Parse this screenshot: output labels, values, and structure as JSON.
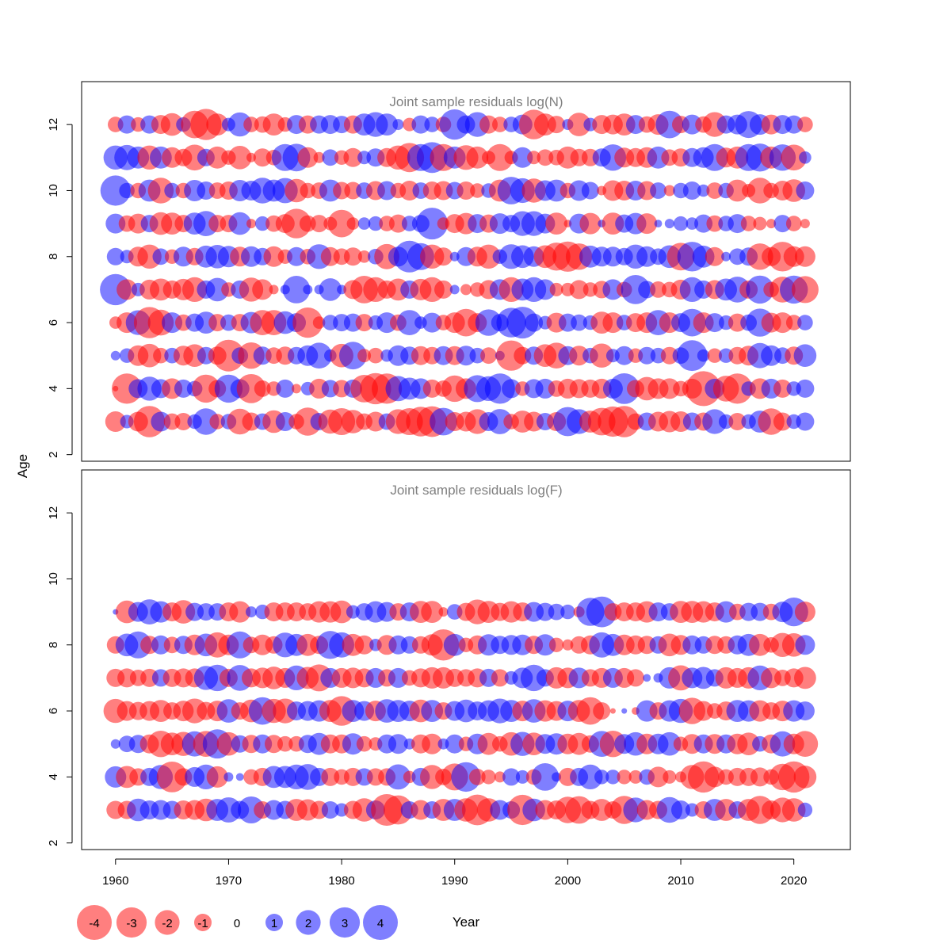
{
  "chart_data": [
    {
      "type": "scatter",
      "title": "Joint sample residuals log(N)",
      "xlabel": "Year",
      "ylabel": "Age",
      "xlim": [
        1957,
        2025
      ],
      "ylim": [
        1.8,
        13.3
      ],
      "x_ticks": [
        1960,
        1970,
        1980,
        1990,
        2000,
        2010,
        2020
      ],
      "y_ticks": [
        2,
        4,
        6,
        8,
        10,
        12
      ],
      "years": [
        1960,
        2021
      ],
      "ages": [
        3,
        4,
        5,
        6,
        7,
        8,
        9,
        10,
        11,
        12
      ],
      "residuals": {
        "3": [
          -1.4,
          0.6,
          -1.3,
          -3.2,
          1.3,
          -0.9,
          -1.0,
          0.7,
          2.3,
          -0.8,
          0.8,
          -2.2,
          -1.1,
          0.9,
          -1.7,
          1.2,
          -0.8,
          -2.6,
          1.0,
          -1.9,
          -2.4,
          -1.8,
          -0.9,
          -1.3,
          0.9,
          -2.0,
          -2.4,
          -2.9,
          -3.1,
          2.5,
          -1.2,
          -1.3,
          -2.0,
          1.2,
          2.1,
          -0.8,
          -1.6,
          -1.3,
          1.0,
          -1.2,
          2.8,
          2.0,
          -1.6,
          -2.5,
          -3.0,
          -3.2,
          -0.9,
          1.1,
          -1.3,
          -1.5,
          -1.4,
          1.1,
          -1.1,
          2.0,
          0.7,
          -1.0,
          0.7,
          1.6,
          -2.3,
          -1.1,
          0.7,
          1.1
        ],
        "4": [
          -0.1,
          -3.0,
          1.2,
          1.9,
          1.2,
          -1.4,
          1.1,
          0.8,
          -2.6,
          -1.0,
          2.6,
          1.2,
          -2.8,
          -0.9,
          -0.7,
          1.1,
          -0.3,
          0.6,
          -1.3,
          1.0,
          -1.0,
          1.1,
          -2.5,
          -3.2,
          -3.0,
          2.1,
          1.6,
          1.4,
          -1.1,
          -0.9,
          -2.3,
          -1.4,
          2.4,
          2.0,
          3.0,
          1.2,
          -0.7,
          1.2,
          1.3,
          -0.9,
          -1.3,
          -1.2,
          -1.1,
          -1.3,
          1.3,
          3.1,
          -1.0,
          -1.8,
          -1.4,
          -1.4,
          -0.8,
          -1.3,
          -4.0,
          1.3,
          -2.2,
          -3.0,
          0.7,
          -1.4,
          1.3,
          -1.1,
          0.7,
          1.1
        ],
        "5": [
          0.3,
          0.7,
          -1.4,
          -1.8,
          -0.8,
          0.8,
          -1.3,
          -1.7,
          1.0,
          -1.1,
          -3.3,
          0.9,
          -2.3,
          1.1,
          -0.9,
          -1.1,
          1.0,
          1.4,
          2.2,
          0.5,
          -1.8,
          2.5,
          -0.6,
          -0.8,
          0.5,
          1.4,
          1.1,
          -1.2,
          -1.0,
          1.2,
          -1.2,
          1.3,
          0.8,
          -0.9,
          0.3,
          -3.0,
          -1.0,
          1.1,
          -1.7,
          -2.2,
          1.2,
          -1.3,
          0.8,
          -1.9,
          0.6,
          1.2,
          -0.7,
          1.0,
          0.8,
          -1.0,
          0.9,
          3.1,
          0.5,
          -0.7,
          0.7,
          -1.0,
          -1.3,
          2.1,
          1.4,
          0.9,
          -1.1,
          1.7
        ],
        "6": [
          -0.5,
          -1.4,
          2.0,
          -3.2,
          -2.2,
          1.4,
          -0.9,
          1.1,
          1.6,
          -1.0,
          0.9,
          -1.0,
          1.5,
          -2.1,
          -2.1,
          1.7,
          1.2,
          -3.0,
          -0.5,
          0.8,
          1.0,
          1.1,
          -1.0,
          0.7,
          1.4,
          -0.9,
          2.1,
          0.5,
          1.3,
          -0.8,
          -1.4,
          -2.5,
          -1.2,
          2.3,
          1.0,
          2.9,
          3.3,
          1.1,
          0.6,
          -1.3,
          1.1,
          0.9,
          0.7,
          -1.6,
          -1.4,
          0.8,
          -1.2,
          -1.4,
          2.1,
          -1.4,
          1.2,
          2.5,
          -1.4,
          1.2,
          0.7,
          -1.1,
          0.9,
          2.6,
          -1.3,
          -1.4,
          -0.8,
          0.8
        ],
        "7": [
          3.2,
          -1.4,
          0.6,
          -1.3,
          -1.6,
          -1.1,
          -1.5,
          -2.0,
          1.1,
          1.8,
          -0.7,
          1.1,
          -1.9,
          -1.4,
          -0.3,
          0.3,
          2.5,
          0.3,
          0.3,
          1.7,
          0.3,
          -1.2,
          -2.5,
          -2.0,
          -1.1,
          -1.6,
          1.1,
          -1.5,
          -2.0,
          -1.1,
          0.3,
          -0.4,
          -0.7,
          -1.2,
          1.4,
          -2.0,
          1.6,
          2.0,
          1.4,
          -0.6,
          -0.6,
          -1.2,
          -0.7,
          -1.0,
          1.4,
          -0.8,
          2.8,
          1.0,
          -0.9,
          -0.8,
          -1.3,
          2.0,
          1.1,
          -1.2,
          1.6,
          2.2,
          -1.1,
          2.6,
          -0.8,
          -2.2,
          2.6,
          -2.4
        ],
        "8": [
          1.0,
          0.6,
          -1.3,
          -1.9,
          0.9,
          -0.7,
          1.3,
          -1.0,
          1.6,
          1.8,
          1.5,
          -1.3,
          1.4,
          1.0,
          -1.4,
          -0.7,
          1.2,
          -0.8,
          2.0,
          -1.2,
          -0.9,
          -1.1,
          -0.5,
          0.8,
          -2.1,
          1.3,
          3.3,
          2.4,
          -1.9,
          -1.1,
          0.3,
          1.2,
          -1.3,
          -1.9,
          0.7,
          2.0,
          1.7,
          1.4,
          -1.7,
          -2.6,
          -3.0,
          -2.3,
          1.6,
          1.3,
          1.3,
          1.0,
          1.9,
          1.4,
          0.9,
          1.7,
          -2.5,
          2.9,
          1.6,
          -1.2,
          0.3,
          0.9,
          1.1,
          -2.3,
          -1.2,
          -2.9,
          -1.4,
          -1.4
        ],
        "9": [
          1.3,
          -0.9,
          -1.3,
          1.0,
          -1.7,
          -1.6,
          -1.0,
          1.6,
          2.1,
          -1.0,
          -1.0,
          1.7,
          -0.3,
          0.7,
          -0.9,
          -1.2,
          -2.9,
          -0.9,
          -1.0,
          -0.6,
          -2.5,
          -0.5,
          0.5,
          0.7,
          -0.8,
          -1.1,
          0.8,
          1.0,
          3.3,
          -0.5,
          -1.2,
          -1.5,
          1.2,
          -1.1,
          1.4,
          1.0,
          2.0,
          2.0,
          1.3,
          -1.6,
          -0.2,
          1.3,
          -1.5,
          0.2,
          -1.6,
          1.1,
          1.5,
          -1.4,
          0.2,
          0.3,
          0.7,
          0.5,
          1.1,
          -0.9,
          0.8,
          1.2,
          -0.8,
          -0.6,
          -0.3,
          1.0,
          -0.8,
          -0.3
        ],
        "10": [
          3.0,
          0.8,
          -0.8,
          1.6,
          -2.2,
          0.8,
          -0.8,
          1.5,
          1.1,
          -0.9,
          -1.1,
          1.5,
          1.3,
          2.2,
          1.6,
          2.1,
          -1.8,
          -0.8,
          -0.9,
          1.6,
          -1.0,
          -1.0,
          0.9,
          -1.2,
          1.2,
          -0.8,
          -1.3,
          0.9,
          -1.1,
          -1.2,
          1.0,
          -1.1,
          -0.7,
          0.7,
          -1.6,
          2.5,
          2.0,
          -1.9,
          1.4,
          1.6,
          -0.8,
          1.4,
          1.0,
          -0.3,
          -1.4,
          -1.3,
          1.3,
          -1.2,
          0.9,
          -0.4,
          0.8,
          1.1,
          0.5,
          -0.9,
          0.8,
          -1.6,
          -0.6,
          -2.2,
          -0.8,
          -1.3,
          -1.7,
          1.1
        ],
        "11": [
          1.9,
          2.1,
          1.6,
          -1.9,
          1.6,
          -1.4,
          -1.0,
          -2.2,
          1.0,
          -1.6,
          -0.7,
          -1.8,
          -0.3,
          -1.1,
          -0.8,
          2.4,
          2.5,
          -1.4,
          -0.4,
          0.9,
          -0.7,
          -1.2,
          0.6,
          1.1,
          -1.2,
          -1.9,
          -2.8,
          2.4,
          3.1,
          -2.4,
          1.6,
          -2.0,
          -1.6,
          -0.6,
          -2.4,
          -0.6,
          1.4,
          -0.6,
          -0.9,
          -0.8,
          -1.6,
          -1.0,
          -1.0,
          1.1,
          2.3,
          -1.3,
          -1.2,
          -1.4,
          1.6,
          -0.9,
          -1.1,
          1.2,
          1.4,
          2.4,
          -1.3,
          -1.6,
          2.4,
          2.6,
          -1.6,
          2.3,
          -2.2,
          0.5
        ],
        "12": [
          -0.8,
          1.1,
          -0.7,
          1.1,
          -1.2,
          -1.7,
          0.7,
          -2.5,
          -3.2,
          -1.6,
          0.6,
          1.9,
          -0.8,
          -0.9,
          -1.6,
          -0.7,
          1.2,
          -1.1,
          1.1,
          1.2,
          1.0,
          -1.1,
          1.6,
          2.0,
          1.6,
          0.4,
          -0.6,
          1.1,
          0.8,
          -0.8,
          3.0,
          1.1,
          2.0,
          -1.1,
          -0.8,
          0.8,
          1.3,
          -2.9,
          -1.6,
          -1.0,
          0.4,
          -1.8,
          0.6,
          -1.2,
          -1.3,
          -1.6,
          1.2,
          -0.9,
          -1.4,
          2.5,
          -1.0,
          1.3,
          -0.9,
          -2.0,
          1.1,
          1.3,
          2.4,
          1.4,
          -1.3,
          1.2,
          1.1,
          -0.8
        ]
      }
    },
    {
      "type": "scatter",
      "title": "Joint sample residuals log(F)",
      "xlabel": "Year",
      "ylabel": "Age",
      "xlim": [
        1957,
        2025
      ],
      "ylim": [
        1.8,
        13.3
      ],
      "x_ticks": [
        1960,
        1970,
        1980,
        1990,
        2000,
        2010,
        2020
      ],
      "y_ticks": [
        2,
        4,
        6,
        8,
        10,
        12
      ],
      "years": [
        1960,
        2021
      ],
      "ages": [
        3,
        4,
        5,
        6,
        7,
        8,
        9
      ],
      "residuals": {
        "3": [
          -1.1,
          -1.1,
          1.7,
          1.2,
          1.3,
          1.1,
          -1.2,
          -1.3,
          -1.7,
          1.6,
          2.1,
          1.1,
          2.4,
          -1.0,
          1.3,
          1.1,
          -1.6,
          -1.5,
          -1.1,
          1.0,
          0.6,
          -1.1,
          -1.8,
          1.2,
          -3.3,
          -2.8,
          1.0,
          -1.3,
          1.0,
          -1.6,
          1.6,
          -1.8,
          -3.1,
          -1.8,
          1.3,
          1.0,
          -3.0,
          1.7,
          -1.3,
          -1.2,
          -2.3,
          -2.5,
          -1.1,
          -1.6,
          -1.0,
          -2.6,
          2.0,
          -1.3,
          -1.1,
          2.2,
          1.2,
          0.6,
          -1.0,
          1.6,
          -1.6,
          1.0,
          -1.6,
          -2.6,
          -1.2,
          -2.0,
          -1.8,
          0.7
        ],
        "4": [
          1.5,
          -1.6,
          -1.0,
          1.1,
          1.9,
          -3.1,
          -1.0,
          1.3,
          2.0,
          -1.5,
          0.3,
          0.2,
          -0.8,
          -1.1,
          1.6,
          1.6,
          2.0,
          2.2,
          1.1,
          -1.1,
          -0.8,
          -1.1,
          1.0,
          -1.0,
          -1.0,
          2.1,
          -0.5,
          1.1,
          -1.9,
          -0.9,
          -2.4,
          2.9,
          -0.9,
          -0.7,
          -0.4,
          1.0,
          0.6,
          -0.8,
          2.5,
          0.3,
          -1.1,
          1.1,
          2.0,
          0.7,
          0.7,
          -0.7,
          -0.6,
          0.8,
          -1.4,
          -0.6,
          -0.4,
          -1.9,
          -3.2,
          -1.4,
          -0.8,
          -1.1,
          -1.1,
          -1.2,
          -0.8,
          -2.3,
          -3.2,
          -1.7
        ],
        "5": [
          0.3,
          0.9,
          1.1,
          -1.2,
          -2.3,
          -1.7,
          -1.9,
          2.1,
          -2.2,
          2.8,
          -1.8,
          1.0,
          -1.1,
          1.2,
          -1.1,
          -0.8,
          -0.8,
          1.1,
          1.6,
          -1.2,
          -1.2,
          1.5,
          -0.8,
          -0.6,
          1.2,
          1.3,
          0.4,
          -1.2,
          -1.4,
          0.4,
          1.2,
          -0.7,
          1.4,
          -1.6,
          -0.8,
          -1.8,
          1.9,
          -1.7,
          1.3,
          1.5,
          -1.4,
          -1.6,
          -1.0,
          2.2,
          -2.3,
          1.3,
          1.8,
          -1.4,
          1.4,
          1.8,
          -0.7,
          -1.3,
          1.2,
          -1.3,
          1.2,
          -1.4,
          -1.7,
          0.8,
          -1.2,
          2.1,
          -1.4,
          -2.2
        ],
        "6": [
          -1.9,
          -1.3,
          -1.1,
          -1.3,
          -1.6,
          -1.0,
          -1.4,
          -2.0,
          -1.1,
          -1.4,
          1.8,
          -1.0,
          -1.7,
          2.5,
          -1.9,
          -2.0,
          1.2,
          1.3,
          1.5,
          -1.6,
          -2.9,
          1.6,
          1.3,
          -1.4,
          1.8,
          1.6,
          1.4,
          -1.7,
          1.6,
          -1.0,
          1.3,
          1.7,
          1.2,
          1.5,
          2.0,
          1.6,
          -1.4,
          1.8,
          -1.5,
          -1.3,
          1.4,
          -1.6,
          -2.5,
          -1.0,
          -0.1,
          0.1,
          -0.2,
          1.5,
          -1.0,
          1.5,
          1.9,
          -2.3,
          -1.3,
          -0.8,
          -1.2,
          1.6,
          1.5,
          -1.5,
          -1.0,
          -1.4,
          1.5,
          1.2
        ],
        "7": [
          -1.1,
          -1.2,
          -0.9,
          -1.1,
          1.0,
          -1.1,
          -1.2,
          -1.2,
          1.9,
          2.3,
          -1.1,
          2.2,
          -1.2,
          -1.4,
          -1.7,
          -1.3,
          2.0,
          -1.6,
          -2.4,
          1.3,
          -1.3,
          -1.4,
          -1.2,
          1.3,
          -1.0,
          1.3,
          -0.8,
          -1.2,
          -1.5,
          -1.5,
          -1.1,
          -1.0,
          -1.2,
          1.1,
          -1.0,
          0.6,
          1.4,
          2.3,
          1.0,
          -1.5,
          -1.4,
          1.4,
          -1.0,
          -1.3,
          1.3,
          -1.3,
          -1.0,
          0.2,
          0.3,
          1.5,
          -2.1,
          1.4,
          1.6,
          1.0,
          -1.5,
          -1.3,
          -1.5,
          2.0,
          -1.4,
          -0.9,
          -1.2,
          -1.6
        ],
        "8": [
          -1.0,
          1.7,
          2.4,
          -1.1,
          1.2,
          -0.9,
          1.1,
          -1.4,
          1.7,
          -2.1,
          -1.4,
          2.4,
          -0.9,
          -1.4,
          -1.0,
          2.0,
          1.6,
          -1.6,
          -1.1,
          2.6,
          2.1,
          -1.6,
          -1.2,
          0.5,
          -1.3,
          1.2,
          1.0,
          -1.0,
          -1.5,
          -3.2,
          1.6,
          -0.7,
          -1.2,
          1.5,
          1.1,
          1.3,
          1.4,
          -1.1,
          1.5,
          -0.7,
          -0.4,
          -1.0,
          -1.2,
          2.1,
          1.6,
          -1.4,
          -1.2,
          -1.1,
          1.0,
          -1.7,
          -1.3,
          1.2,
          1.0,
          -1.1,
          -1.0,
          1.2,
          1.6,
          -1.6,
          -0.8,
          -1.9,
          -1.8,
          1.3
        ],
        "9": [
          0.1,
          -1.7,
          1.3,
          2.1,
          1.5,
          -1.2,
          -1.8,
          1.1,
          1.0,
          1.0,
          -1.2,
          -1.5,
          0.4,
          0.7,
          -1.2,
          -1.2,
          -1.2,
          -1.0,
          -1.5,
          -1.5,
          -1.7,
          0.6,
          1.0,
          1.5,
          1.3,
          -1.0,
          1.2,
          -1.6,
          -1.6,
          -0.3,
          0.8,
          -1.1,
          -2.0,
          -1.6,
          -1.1,
          -1.5,
          -1.2,
          1.3,
          1.1,
          0.9,
          0.7,
          -0.4,
          2.6,
          3.1,
          -1.0,
          -1.2,
          -1.2,
          -1.5,
          1.2,
          1.0,
          -1.6,
          -1.6,
          -1.5,
          -1.2,
          1.5,
          -0.9,
          1.1,
          1.1,
          -0.9,
          1.4,
          2.7,
          -1.4
        ]
      }
    }
  ],
  "legend": {
    "values": [
      -4,
      -3,
      -2,
      -1,
      0,
      1,
      2,
      3,
      4
    ],
    "labels": [
      "-4",
      "-3",
      "-2",
      "-1",
      "0",
      "1",
      "2",
      "3",
      "4"
    ]
  },
  "colors": {
    "negative": "#ff0000",
    "positive": "#0000ff",
    "fill_opacity": 0.5,
    "panel_title": "#808080"
  },
  "axes": {
    "xlabel": "Year",
    "ylabel": "Age"
  }
}
